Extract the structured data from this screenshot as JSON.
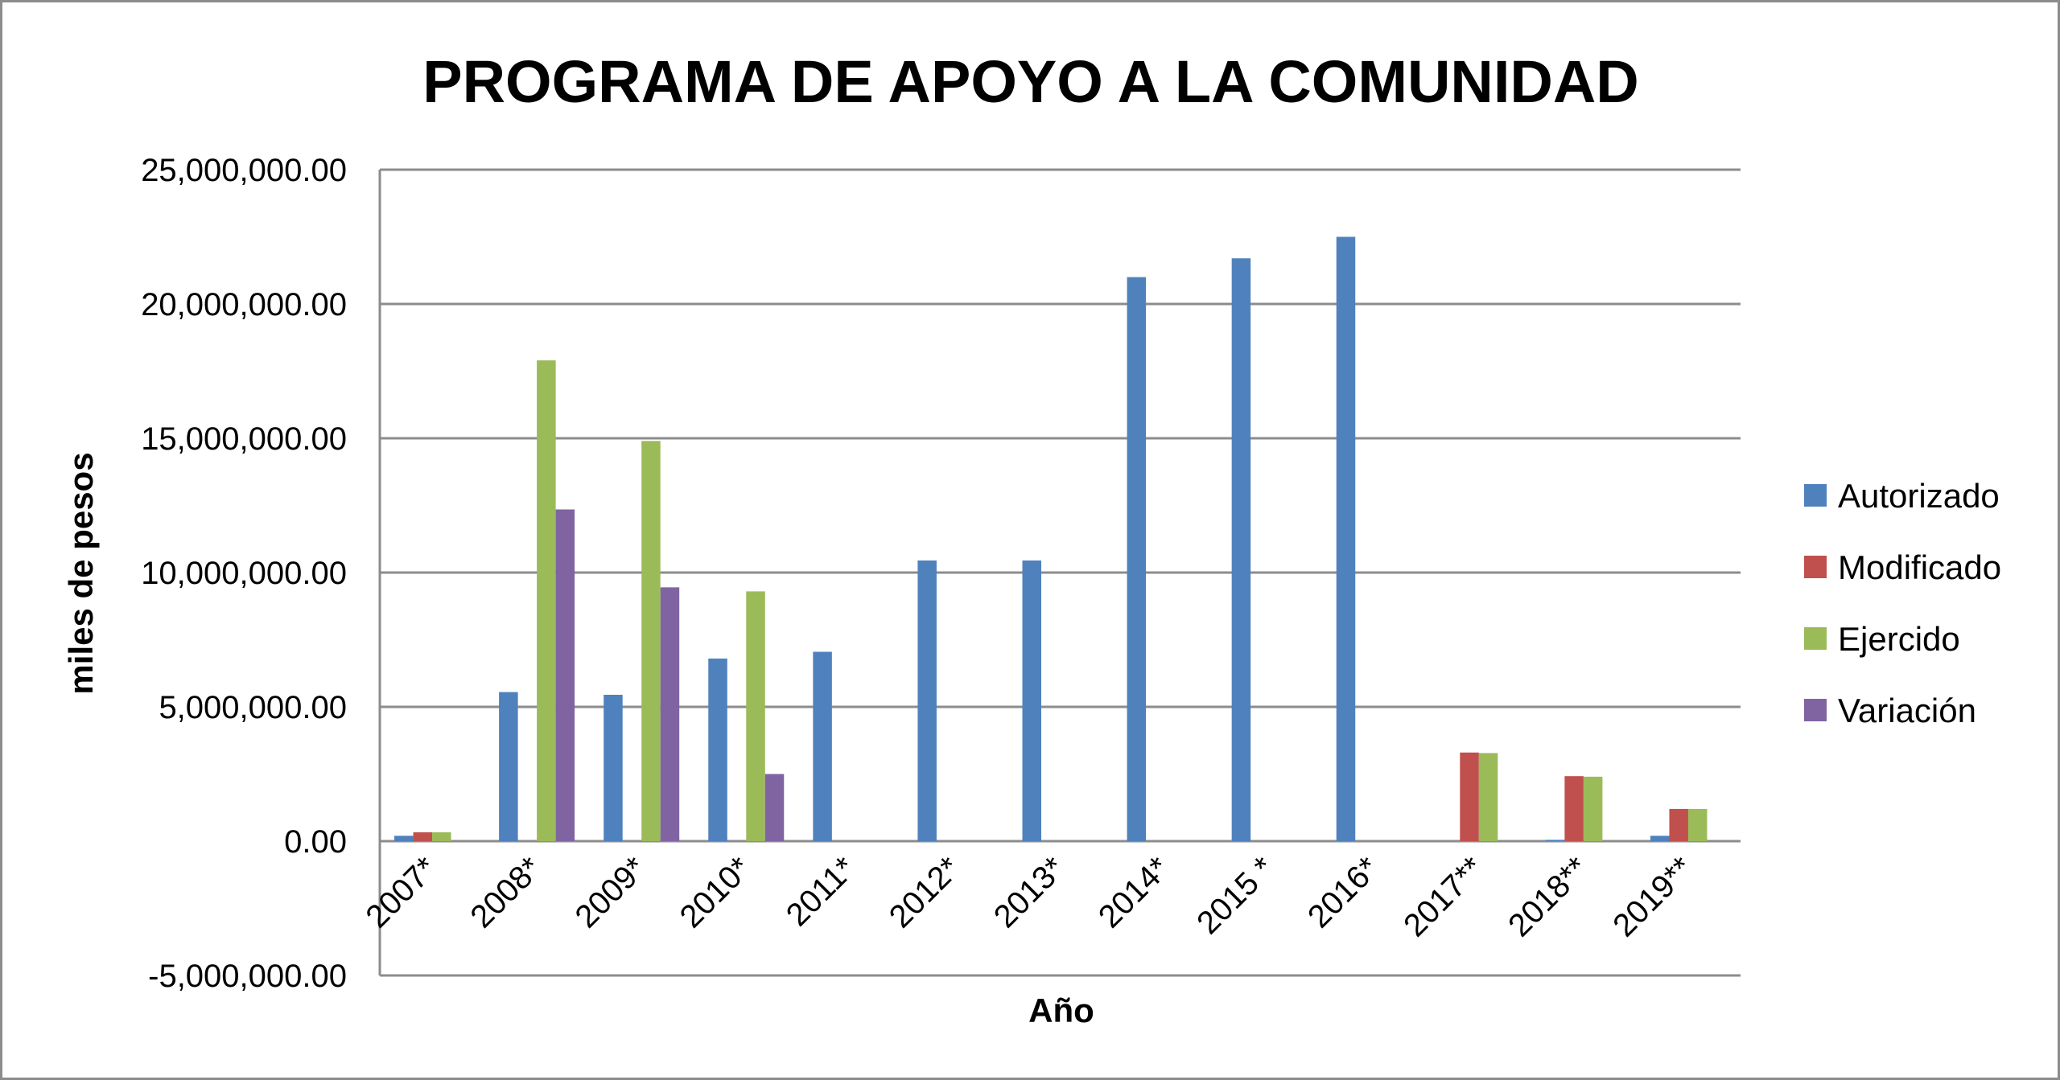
{
  "chart_data": {
    "type": "bar",
    "title": "PROGRAMA DE APOYO A LA COMUNIDAD",
    "xlabel": "Año",
    "ylabel": "miles de pesos",
    "ylim": [
      -5000000,
      25000000
    ],
    "yticks": [
      {
        "value": 25000000,
        "label": "25,000,000.00"
      },
      {
        "value": 20000000,
        "label": "20,000,000.00"
      },
      {
        "value": 15000000,
        "label": "15,000,000.00"
      },
      {
        "value": 10000000,
        "label": "10,000,000.00"
      },
      {
        "value": 5000000,
        "label": "5,000,000.00"
      },
      {
        "value": 0,
        "label": "0.00"
      },
      {
        "value": -5000000,
        "label": "-5,000,000.00"
      }
    ],
    "categories": [
      "2007*",
      "2008*",
      "2009*",
      "2010*",
      "2011*",
      "2012*",
      "2013*",
      "2014*",
      "2015 *",
      "2016*",
      "2017**",
      "2018**",
      "2019**"
    ],
    "grid": true,
    "legend_position": "right",
    "series": [
      {
        "name": "Autorizado",
        "color": "#4f81bd",
        "values": [
          200000,
          5550000,
          5450000,
          6800000,
          7050000,
          10450000,
          10450000,
          21000000,
          21700000,
          22500000,
          0,
          50000,
          200000
        ]
      },
      {
        "name": "Modificado",
        "color": "#c0504d",
        "values": [
          330000,
          0,
          0,
          0,
          0,
          0,
          0,
          0,
          0,
          0,
          3300000,
          2420000,
          1200000
        ]
      },
      {
        "name": "Ejercido",
        "color": "#9bbb59",
        "values": [
          330000,
          17900000,
          14900000,
          9300000,
          0,
          0,
          0,
          0,
          0,
          0,
          3280000,
          2400000,
          1200000
        ]
      },
      {
        "name": "Variación",
        "color": "#8064a2",
        "values": [
          0,
          12350000,
          9450000,
          2500000,
          0,
          0,
          0,
          0,
          0,
          0,
          0,
          0,
          0
        ]
      }
    ]
  }
}
